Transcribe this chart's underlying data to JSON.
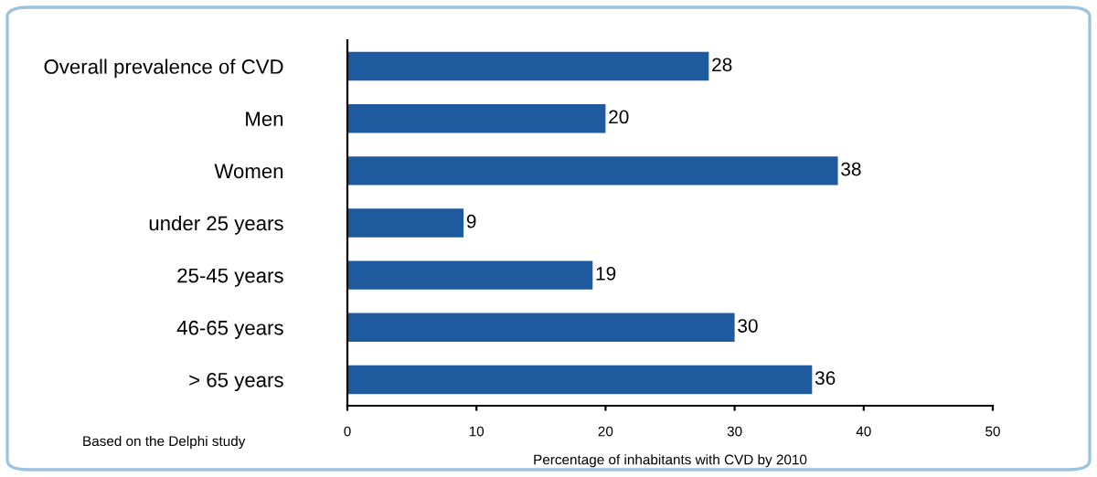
{
  "chart_data": {
    "type": "bar",
    "orientation": "horizontal",
    "categories": [
      "Overall prevalence of CVD",
      "Men",
      "Women",
      "under 25 years",
      "25-45 years",
      "46-65 years",
      "> 65 years"
    ],
    "values": [
      28,
      20,
      38,
      9,
      19,
      30,
      36
    ],
    "color": "#1f5a9e",
    "xlim": [
      0,
      50
    ],
    "xticks": [
      0,
      10,
      20,
      30,
      40,
      50
    ],
    "xlabel": "Percentage of inhabitants with CVD by 2010",
    "annotations": [
      "Based on the Delphi study"
    ],
    "data_labels": true,
    "grid": false,
    "legend": false
  }
}
